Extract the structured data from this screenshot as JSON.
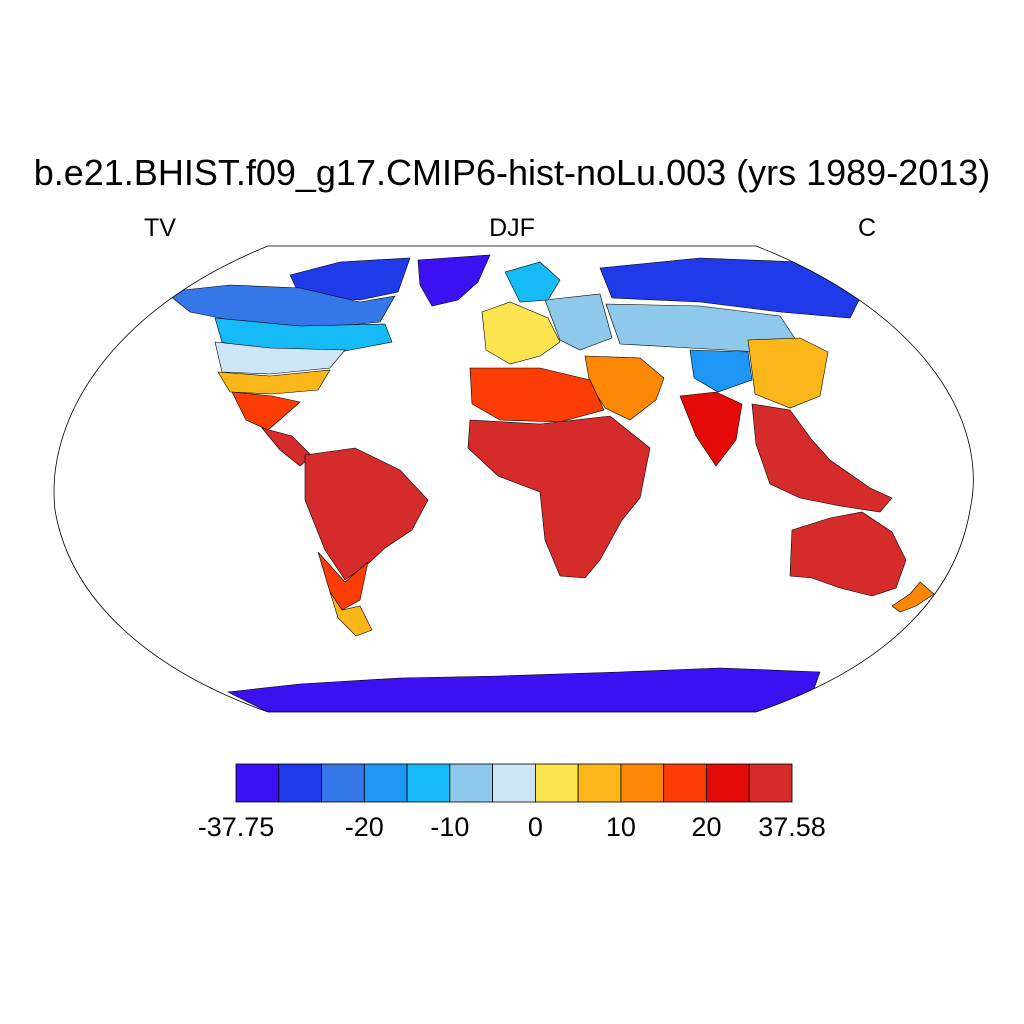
{
  "figure": {
    "title": "b.e21.BHIST.f09_g17.CMIP6-hist-noLu.003 (yrs 1989-2013)",
    "left_label": "TV",
    "center_label": "DJF",
    "right_label": "C"
  },
  "colorbar": {
    "colors": [
      "#3c10f0",
      "#1f3ae8",
      "#3577e8",
      "#1e96f5",
      "#16baf6",
      "#8ec9ec",
      "#cde6f7",
      "#fce44f",
      "#fbb71a",
      "#fb8704",
      "#fb3c04",
      "#e40a06",
      "#d52b2b"
    ],
    "labels": [
      "-37.75",
      "-20",
      "-10",
      "0",
      "10",
      "20",
      "37.58"
    ],
    "label_boundary_index": [
      0,
      3,
      5,
      7,
      9,
      11,
      13
    ]
  },
  "chart_data": {
    "type": "heatmap",
    "projection": "Robinson",
    "variable": "TV",
    "season": "DJF",
    "units": "C",
    "range": [
      -37.75,
      37.58
    ],
    "regions": [
      {
        "region": "Greenland",
        "class": 0
      },
      {
        "region": "Canadian Arctic",
        "class": 1
      },
      {
        "region": "Northern Canada",
        "class": 2
      },
      {
        "region": "Southern Canada",
        "class": 4
      },
      {
        "region": "Northern USA",
        "class": 6
      },
      {
        "region": "Southern USA",
        "class": 8
      },
      {
        "region": "Mexico",
        "class": 10
      },
      {
        "region": "Central America",
        "class": 12
      },
      {
        "region": "South America (north/central)",
        "class": 12
      },
      {
        "region": "Southern South America",
        "class": 10
      },
      {
        "region": "Patagonia",
        "class": 8
      },
      {
        "region": "Western Europe",
        "class": 7
      },
      {
        "region": "Eastern Europe",
        "class": 5
      },
      {
        "region": "Scandinavia",
        "class": 4
      },
      {
        "region": "Siberia",
        "class": 1
      },
      {
        "region": "Central Asia",
        "class": 5
      },
      {
        "region": "Tibetan Plateau",
        "class": 3
      },
      {
        "region": "China",
        "class": 8
      },
      {
        "region": "India",
        "class": 11
      },
      {
        "region": "Middle East",
        "class": 9
      },
      {
        "region": "North Africa",
        "class": 10
      },
      {
        "region": "Sub-Saharan Africa",
        "class": 12
      },
      {
        "region": "Southeast Asia",
        "class": 12
      },
      {
        "region": "Australia",
        "class": 12
      },
      {
        "region": "New Zealand",
        "class": 9
      },
      {
        "region": "Antarctica",
        "class": 0
      }
    ]
  }
}
